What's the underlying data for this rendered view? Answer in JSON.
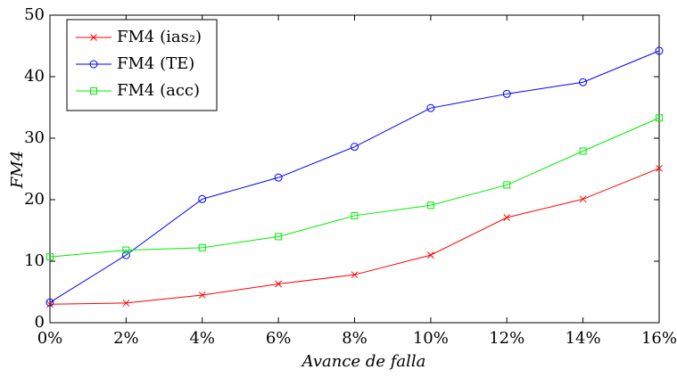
{
  "chart_data": {
    "type": "line",
    "xlabel": "Avance de falla",
    "ylabel": "FM4",
    "x": [
      0,
      2,
      4,
      6,
      8,
      10,
      12,
      14,
      16
    ],
    "series": [
      {
        "name": "FM4 (ias₂)",
        "color": "#ff0000",
        "marker": "x",
        "values": [
          3.0,
          3.2,
          4.5,
          6.3,
          7.8,
          11.0,
          17.1,
          20.1,
          25.1
        ]
      },
      {
        "name": "FM4 (TE)",
        "color": "#0000ff",
        "marker": "o",
        "values": [
          3.3,
          11.0,
          20.1,
          23.6,
          28.6,
          34.9,
          37.2,
          39.1,
          44.2
        ]
      },
      {
        "name": "FM4 (acc)",
        "color": "#00ee00",
        "marker": "s",
        "values": [
          10.7,
          11.8,
          12.2,
          14.0,
          17.4,
          19.1,
          22.4,
          27.9,
          33.3
        ]
      }
    ],
    "xlim": [
      0,
      16
    ],
    "xticks": [
      {
        "value": 0,
        "label": "0%"
      },
      {
        "value": 2,
        "label": "2%"
      },
      {
        "value": 4,
        "label": "4%"
      },
      {
        "value": 6,
        "label": "6%"
      },
      {
        "value": 8,
        "label": "8%"
      },
      {
        "value": 10,
        "label": "10%"
      },
      {
        "value": 12,
        "label": "12%"
      },
      {
        "value": 14,
        "label": "14%"
      },
      {
        "value": 16,
        "label": "16%"
      }
    ],
    "ylim": [
      0,
      50
    ],
    "yticks": [
      0,
      10,
      20,
      30,
      40,
      50
    ],
    "grid": false,
    "legend": "upper left"
  }
}
